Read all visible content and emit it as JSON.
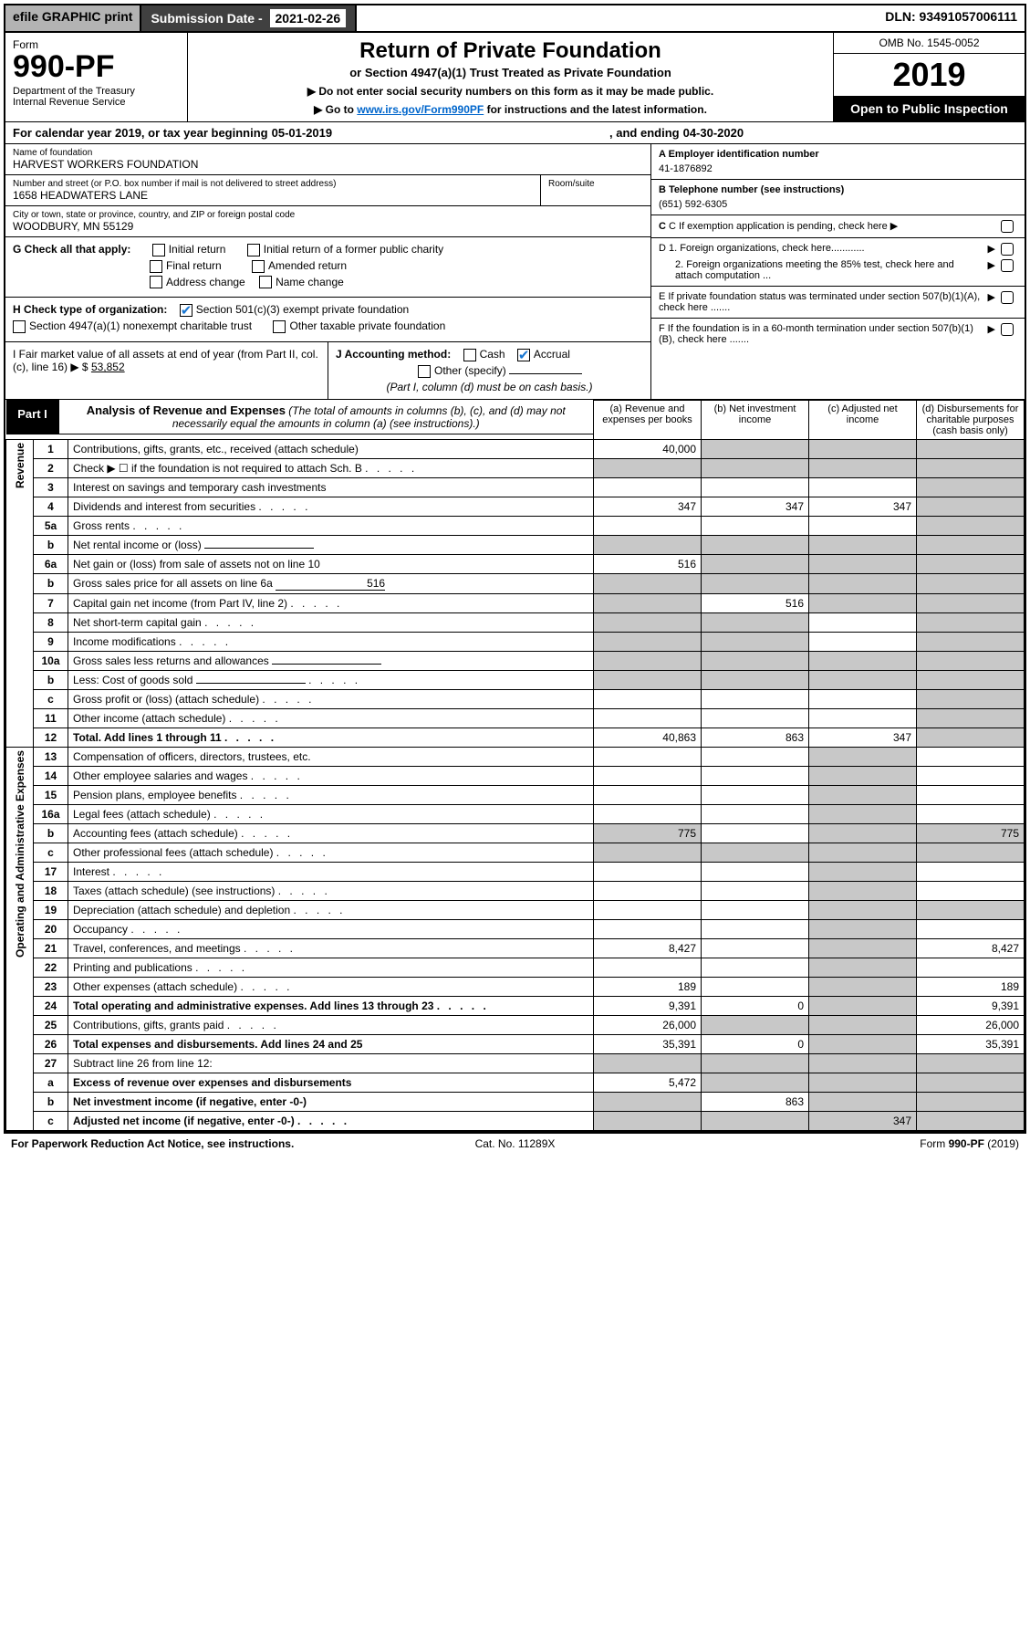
{
  "topbar": {
    "efile": "efile GRAPHIC print",
    "submission_label": "Submission Date -",
    "submission_date": "2021-02-26",
    "dln_label": "DLN:",
    "dln": "93491057006111"
  },
  "header": {
    "form_word": "Form",
    "form_number": "990-PF",
    "dept": "Department of the Treasury\nInternal Revenue Service",
    "title1": "Return of Private Foundation",
    "title2": "or Section 4947(a)(1) Trust Treated as Private Foundation",
    "note1": "▶ Do not enter social security numbers on this form as it may be made public.",
    "note2": "▶ Go to ",
    "note2_link": "www.irs.gov/Form990PF",
    "note2_after": " for instructions and the latest information.",
    "omb": "OMB No. 1545-0052",
    "year": "2019",
    "open_public": "Open to Public Inspection"
  },
  "calendar": {
    "prefix": "For calendar year 2019, or tax year beginning",
    "begin": "05-01-2019",
    "mid": ", and ending",
    "end": "04-30-2020"
  },
  "entity": {
    "name_label": "Name of foundation",
    "name": "HARVEST WORKERS FOUNDATION",
    "street_label": "Number and street (or P.O. box number if mail is not delivered to street address)",
    "street": "1658 HEADWATERS LANE",
    "room_label": "Room/suite",
    "city_label": "City or town, state or province, country, and ZIP or foreign postal code",
    "city": "WOODBURY, MN  55129",
    "ein_label": "A Employer identification number",
    "ein": "41-1876892",
    "phone_label": "B Telephone number (see instructions)",
    "phone": "(651) 592-6305",
    "c_label": "C If exemption application is pending, check here"
  },
  "g": {
    "label": "G Check all that apply:",
    "initial_return": "Initial return",
    "initial_former": "Initial return of a former public charity",
    "final_return": "Final return",
    "amended": "Amended return",
    "address_change": "Address change",
    "name_change": "Name change"
  },
  "h": {
    "label": "H Check type of organization:",
    "opt1": "Section 501(c)(3) exempt private foundation",
    "opt2": "Section 4947(a)(1) nonexempt charitable trust",
    "opt3": "Other taxable private foundation"
  },
  "i": {
    "label": "I Fair market value of all assets at end of year (from Part II, col. (c), line 16) ▶ $",
    "value": "53,852"
  },
  "j": {
    "label": "J Accounting method:",
    "cash": "Cash",
    "accrual": "Accrual",
    "other": "Other (specify)",
    "note": "(Part I, column (d) must be on cash basis.)"
  },
  "right_boxes": {
    "d1": "D 1. Foreign organizations, check here............",
    "d2": "2. Foreign organizations meeting the 85% test, check here and attach computation ...",
    "e": "E  If private foundation status was terminated under section 507(b)(1)(A), check here .......",
    "f": "F  If the foundation is in a 60-month termination under section 507(b)(1)(B), check here ......."
  },
  "part1": {
    "label": "Part I",
    "title": "Analysis of Revenue and Expenses",
    "subtitle": "(The total of amounts in columns (b), (c), and (d) may not necessarily equal the amounts in column (a) (see instructions).)",
    "col_a": "(a)   Revenue and expenses per books",
    "col_b": "(b)   Net investment income",
    "col_c": "(c)   Adjusted net income",
    "col_d": "(d)   Disbursements for charitable purposes (cash basis only)"
  },
  "side_labels": {
    "revenue": "Revenue",
    "expenses": "Operating and Administrative Expenses"
  },
  "rows": [
    {
      "n": "1",
      "desc": "Contributions, gifts, grants, etc., received (attach schedule)",
      "a": "40,000"
    },
    {
      "n": "2",
      "desc": "Check ▶ ☐ if the foundation is not required to attach Sch. B",
      "dots": true
    },
    {
      "n": "3",
      "desc": "Interest on savings and temporary cash investments"
    },
    {
      "n": "4",
      "desc": "Dividends and interest from securities",
      "a": "347",
      "b": "347",
      "c": "347",
      "dots": true
    },
    {
      "n": "5a",
      "desc": "Gross rents",
      "dots": true
    },
    {
      "n": "b",
      "desc": "Net rental income or (loss)",
      "inline": true
    },
    {
      "n": "6a",
      "desc": "Net gain or (loss) from sale of assets not on line 10",
      "a": "516"
    },
    {
      "n": "b",
      "desc": "Gross sales price for all assets on line 6a",
      "inline": true,
      "inline_val": "516"
    },
    {
      "n": "7",
      "desc": "Capital gain net income (from Part IV, line 2)",
      "b": "516",
      "dots": true
    },
    {
      "n": "8",
      "desc": "Net short-term capital gain",
      "dots": true
    },
    {
      "n": "9",
      "desc": "Income modifications",
      "dots": true
    },
    {
      "n": "10a",
      "desc": "Gross sales less returns and allowances",
      "inline": true
    },
    {
      "n": "b",
      "desc": "Less: Cost of goods sold",
      "inline": true,
      "dots": true
    },
    {
      "n": "c",
      "desc": "Gross profit or (loss) (attach schedule)",
      "dots": true
    },
    {
      "n": "11",
      "desc": "Other income (attach schedule)",
      "dots": true
    },
    {
      "n": "12",
      "desc": "Total. Add lines 1 through 11",
      "bold": true,
      "a": "40,863",
      "b": "863",
      "c": "347",
      "dots": true
    }
  ],
  "exp_rows": [
    {
      "n": "13",
      "desc": "Compensation of officers, directors, trustees, etc."
    },
    {
      "n": "14",
      "desc": "Other employee salaries and wages",
      "dots": true
    },
    {
      "n": "15",
      "desc": "Pension plans, employee benefits",
      "dots": true
    },
    {
      "n": "16a",
      "desc": "Legal fees (attach schedule)",
      "dots": true
    },
    {
      "n": "b",
      "desc": "Accounting fees (attach schedule)",
      "a": "775",
      "d": "775",
      "dots": true
    },
    {
      "n": "c",
      "desc": "Other professional fees (attach schedule)",
      "dots": true
    },
    {
      "n": "17",
      "desc": "Interest",
      "dots": true
    },
    {
      "n": "18",
      "desc": "Taxes (attach schedule) (see instructions)",
      "dots": true
    },
    {
      "n": "19",
      "desc": "Depreciation (attach schedule) and depletion",
      "dots": true
    },
    {
      "n": "20",
      "desc": "Occupancy",
      "dots": true
    },
    {
      "n": "21",
      "desc": "Travel, conferences, and meetings",
      "a": "8,427",
      "d": "8,427",
      "dots": true
    },
    {
      "n": "22",
      "desc": "Printing and publications",
      "dots": true
    },
    {
      "n": "23",
      "desc": "Other expenses (attach schedule)",
      "a": "189",
      "d": "189",
      "dots": true
    },
    {
      "n": "24",
      "desc": "Total operating and administrative expenses. Add lines 13 through 23",
      "bold": true,
      "a": "9,391",
      "b": "0",
      "d": "9,391",
      "dots": true
    },
    {
      "n": "25",
      "desc": "Contributions, gifts, grants paid",
      "a": "26,000",
      "d": "26,000",
      "dots": true
    },
    {
      "n": "26",
      "desc": "Total expenses and disbursements. Add lines 24 and 25",
      "bold": true,
      "a": "35,391",
      "b": "0",
      "d": "35,391"
    },
    {
      "n": "27",
      "desc": "Subtract line 26 from line 12:"
    },
    {
      "n": "a",
      "desc": "Excess of revenue over expenses and disbursements",
      "bold": true,
      "a": "5,472"
    },
    {
      "n": "b",
      "desc": "Net investment income (if negative, enter -0-)",
      "bold": true,
      "b": "863"
    },
    {
      "n": "c",
      "desc": "Adjusted net income (if negative, enter -0-)",
      "bold": true,
      "c": "347",
      "dots": true
    }
  ],
  "footer": {
    "left": "For Paperwork Reduction Act Notice, see instructions.",
    "center": "Cat. No. 11289X",
    "right": "Form 990-PF (2019)"
  }
}
